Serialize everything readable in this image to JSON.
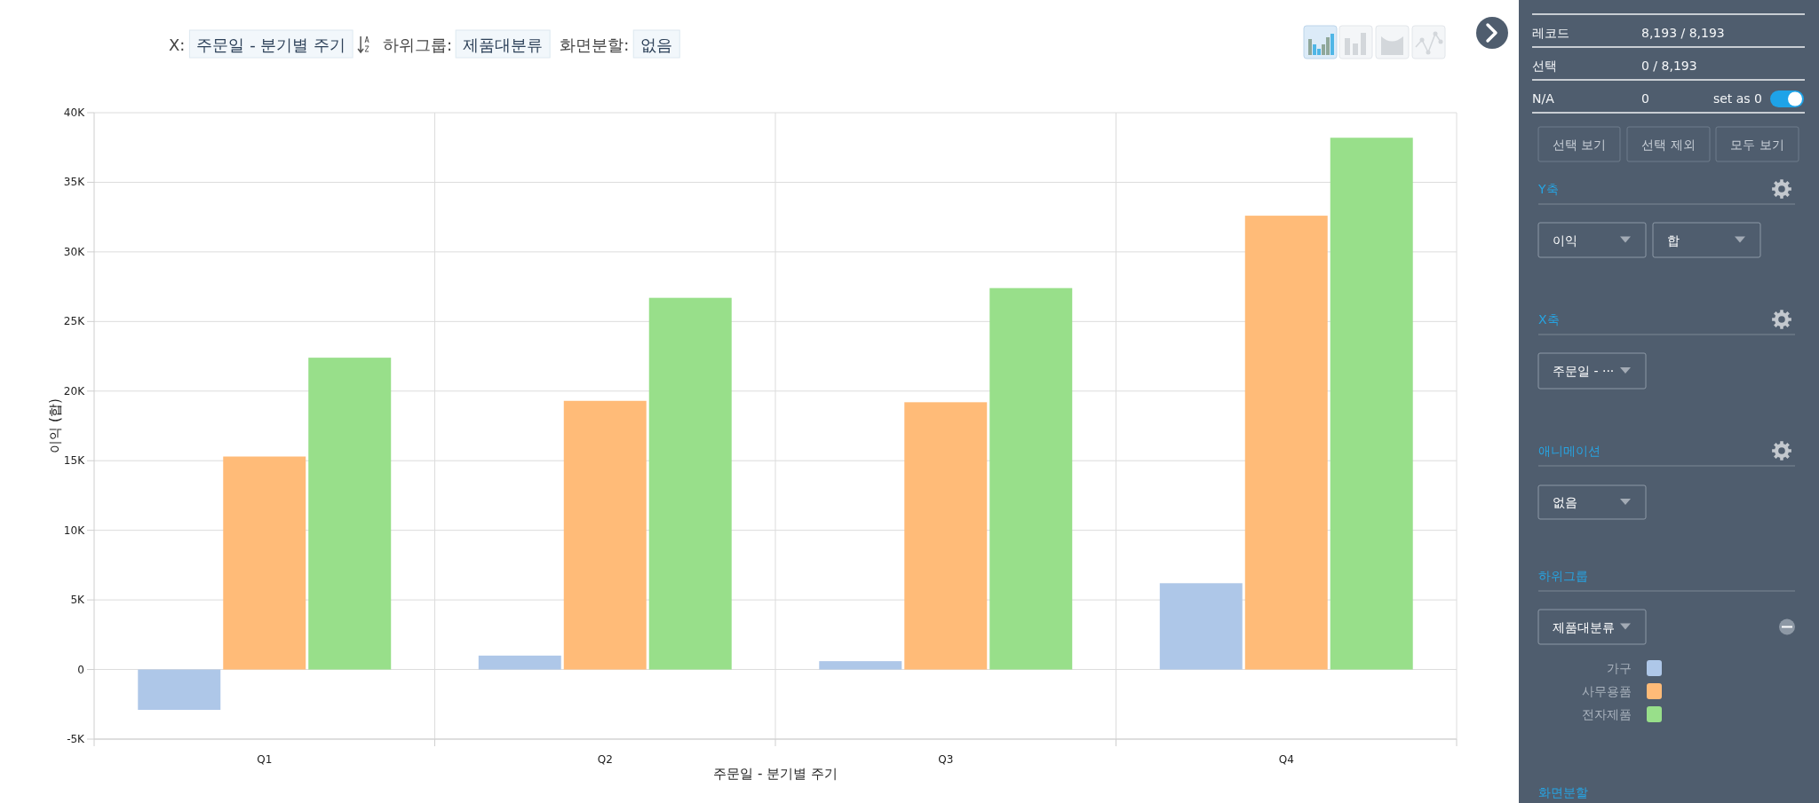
{
  "chart_data": {
    "type": "bar",
    "xlabel": "주문일 - 분기별 주기",
    "ylabel": "이익 (합)",
    "legend_title": "하위그룹",
    "categories": [
      "Q1",
      "Q2",
      "Q3",
      "Q4"
    ],
    "series": [
      {
        "name": "가구",
        "color": "#aec7e8",
        "values": [
          -2900,
          1000,
          600,
          6200
        ]
      },
      {
        "name": "사무용품",
        "color": "#ffbb78",
        "values": [
          15300,
          19300,
          19200,
          32600
        ]
      },
      {
        "name": "전자제품",
        "color": "#98df8a",
        "values": [
          22400,
          26700,
          27400,
          38200
        ]
      }
    ],
    "ylim": [
      -5000,
      40000
    ],
    "yticks": [
      {
        "value": -5000,
        "label": "-5K"
      },
      0,
      {
        "value": 5000,
        "label": "5K"
      },
      {
        "value": 10000,
        "label": "10K"
      },
      {
        "value": 15000,
        "label": "15K"
      },
      {
        "value": 20000,
        "label": "20K"
      },
      {
        "value": 25000,
        "label": "25K"
      },
      {
        "value": 30000,
        "label": "30K"
      },
      {
        "value": 35000,
        "label": "35K"
      },
      {
        "value": 40000,
        "label": "40K"
      }
    ],
    "grid": true,
    "legend": "right",
    "annotations": [
      "X:",
      "주문일 - 분기별 주기",
      "하위그룹:",
      "제품대분류",
      "화면분할:",
      "없음",
      "레코드",
      "8,193 / 8,193",
      "선택",
      "0 / 8,193",
      "N/A",
      "0",
      "set as 0",
      "선택 보기",
      "선택 제외",
      "모두 보기",
      "Y축",
      "이익",
      "합",
      "X축",
      "주문일 - ···",
      "애니메이션",
      "없음",
      "제품대분류",
      "화면분할"
    ]
  }
}
